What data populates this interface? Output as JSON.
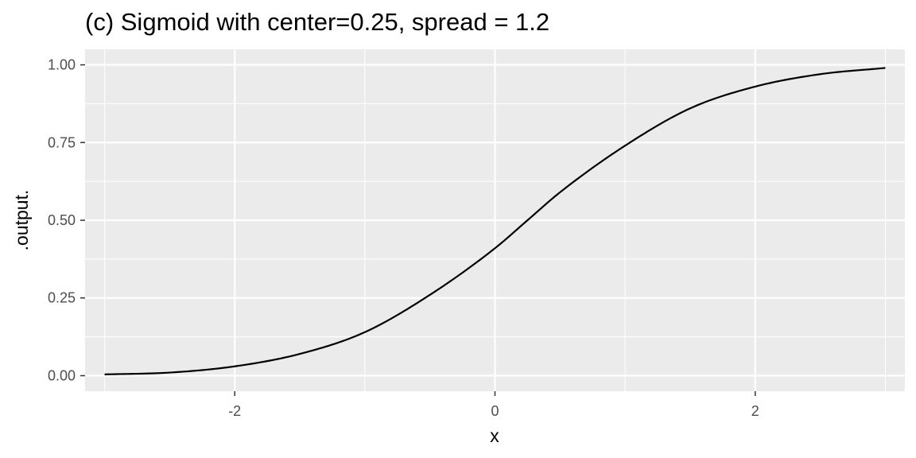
{
  "chart_data": {
    "type": "line",
    "title": "(c) Sigmoid with center=0.25, spread = 1.2",
    "xlabel": "x",
    "ylabel": ".output.",
    "xlim": [
      -3.15,
      3.15
    ],
    "ylim": [
      -0.05,
      1.05
    ],
    "x_ticks": [
      -2,
      0,
      2
    ],
    "x_tick_labels": [
      "-2",
      "0",
      "2"
    ],
    "y_ticks": [
      0,
      0.25,
      0.5,
      0.75,
      1
    ],
    "y_tick_labels": [
      "0.00",
      "0.25",
      "0.50",
      "0.75",
      "1.00"
    ],
    "grid": true,
    "series": [
      {
        "color": "#000000",
        "x": [
          -3,
          -2.5,
          -2,
          -1.5,
          -1,
          -0.5,
          0,
          0.25,
          0.5,
          1,
          1.5,
          2,
          2.5,
          3
        ],
        "y": [
          0.004,
          0.01,
          0.03,
          0.07,
          0.14,
          0.26,
          0.41,
          0.5,
          0.59,
          0.74,
          0.86,
          0.93,
          0.97,
          0.99
        ]
      }
    ],
    "colors": {
      "panel": "#ebebeb",
      "grid": "#ffffff",
      "line": "#000000",
      "tick": "#333333"
    }
  }
}
